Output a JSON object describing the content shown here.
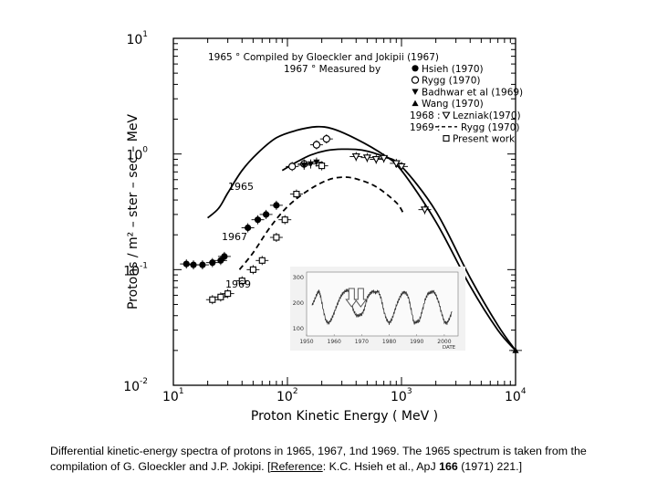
{
  "chart_data": {
    "type": "scatter",
    "xlabel": "Proton   Kinetic   Energy    ( MeV )",
    "ylabel": "Protons / m² – ster – sec – MeV",
    "xscale": "log",
    "yscale": "log",
    "xlim": [
      10,
      10000
    ],
    "ylim": [
      0.01,
      10
    ],
    "x_ticks": [
      {
        "base": "10",
        "exp": "1"
      },
      {
        "base": "10",
        "exp": "2"
      },
      {
        "base": "10",
        "exp": "3"
      },
      {
        "base": "10",
        "exp": "4"
      }
    ],
    "y_ticks": [
      {
        "base": "10",
        "exp": "-2"
      },
      {
        "base": "10",
        "exp": "-1"
      },
      {
        "base": "10",
        "exp": "0"
      },
      {
        "base": "10",
        "exp": "1"
      }
    ],
    "curve_labels": [
      "1965",
      "1967",
      "1969"
    ],
    "legend": {
      "position": "top-right",
      "entries": [
        {
          "prefix": "1965 ° Compiled  by  Gloeckler  and  Jokipii (1967)"
        },
        {
          "prefix": "1967 ° Measured  by",
          "marker": "filled-circle",
          "label": "Hsieh  (1970)"
        },
        {
          "marker": "open-circle",
          "label": "Rygg  (1970)"
        },
        {
          "marker": "filled-triangle-down",
          "label": "Badhwar et al (1969)"
        },
        {
          "marker": "filled-triangle-up",
          "label": "Wang  (1970)"
        },
        {
          "prefix": "1968 :",
          "marker": "open-triangle-down",
          "label": "Lezniak(1970)"
        },
        {
          "prefix": "1969 :",
          "marker": "dashed-line",
          "label": "Rygg  (1970)"
        },
        {
          "marker": "open-square",
          "label": "Present  work"
        }
      ]
    },
    "series": [
      {
        "name": "1965 spectrum",
        "style": "solid",
        "points": [
          [
            20,
            0.28
          ],
          [
            25,
            0.34
          ],
          [
            30,
            0.46
          ],
          [
            40,
            0.72
          ],
          [
            55,
            1.02
          ],
          [
            80,
            1.38
          ],
          [
            120,
            1.6
          ],
          [
            180,
            1.72
          ],
          [
            250,
            1.65
          ],
          [
            400,
            1.35
          ],
          [
            700,
            0.98
          ],
          [
            1000,
            0.72
          ],
          [
            2000,
            0.26
          ],
          [
            4000,
            0.072
          ],
          [
            7000,
            0.03
          ],
          [
            10000,
            0.02
          ]
        ]
      },
      {
        "name": "1967 spectrum",
        "style": "solid",
        "points": [
          [
            90,
            0.72
          ],
          [
            120,
            0.85
          ],
          [
            160,
            0.98
          ],
          [
            220,
            1.07
          ],
          [
            300,
            1.1
          ],
          [
            450,
            1.08
          ],
          [
            700,
            0.95
          ],
          [
            1000,
            0.78
          ],
          [
            2000,
            0.32
          ],
          [
            4000,
            0.085
          ],
          [
            7000,
            0.033
          ],
          [
            10000,
            0.02
          ]
        ]
      },
      {
        "name": "1969 spectrum",
        "style": "dashed",
        "points": [
          [
            38,
            0.1
          ],
          [
            50,
            0.14
          ],
          [
            70,
            0.23
          ],
          [
            100,
            0.35
          ],
          [
            150,
            0.48
          ],
          [
            220,
            0.59
          ],
          [
            300,
            0.63
          ],
          [
            400,
            0.61
          ],
          [
            600,
            0.52
          ],
          [
            900,
            0.38
          ],
          [
            1050,
            0.3
          ]
        ]
      },
      {
        "name": "Hsieh (1970)",
        "marker": "filled-circle",
        "points": [
          [
            13,
            0.112
          ],
          [
            15,
            0.11
          ],
          [
            18,
            0.11
          ],
          [
            22,
            0.115
          ],
          [
            26,
            0.12
          ],
          [
            28,
            0.13
          ],
          [
            45,
            0.23
          ],
          [
            55,
            0.27
          ],
          [
            65,
            0.3
          ],
          [
            80,
            0.36
          ]
        ]
      },
      {
        "name": "Rygg (1970)",
        "marker": "open-circle",
        "points": [
          [
            110,
            0.78
          ],
          [
            140,
            0.82
          ],
          [
            180,
            1.2
          ],
          [
            220,
            1.35
          ]
        ]
      },
      {
        "name": "Badhwar et al (1969)",
        "marker": "filled-triangle-down",
        "points": [
          [
            140,
            0.8
          ],
          [
            160,
            0.82
          ],
          [
            180,
            0.85
          ]
        ]
      },
      {
        "name": "Lezniak (1970)",
        "marker": "open-triangle-down",
        "points": [
          [
            400,
            0.95
          ],
          [
            500,
            0.93
          ],
          [
            600,
            0.9
          ],
          [
            700,
            0.92
          ],
          [
            900,
            0.83
          ],
          [
            1000,
            0.78
          ],
          [
            1600,
            0.33
          ]
        ]
      },
      {
        "name": "Present work",
        "marker": "open-square",
        "points": [
          [
            22,
            0.055
          ],
          [
            26,
            0.058
          ],
          [
            30,
            0.062
          ],
          [
            40,
            0.08
          ],
          [
            50,
            0.1
          ],
          [
            60,
            0.12
          ],
          [
            80,
            0.19
          ],
          [
            95,
            0.27
          ],
          [
            120,
            0.45
          ],
          [
            200,
            0.79
          ]
        ]
      },
      {
        "name": "Wang (1970)",
        "marker": "filled-triangle-up",
        "points": [
          [
            10000,
            0.02
          ]
        ]
      }
    ],
    "inset": {
      "type": "line",
      "x_ticks": [
        "1950",
        "1960",
        "1970",
        "1980",
        "1990",
        "2000"
      ],
      "y_ticks": [
        "100",
        "200",
        "300"
      ],
      "xlabel": "DATE",
      "xlim": [
        1950,
        2005
      ],
      "ylim": [
        70,
        320
      ],
      "arrows_at": [
        1967,
        1969
      ],
      "series": {
        "x": [
          1952,
          1953,
          1954,
          1954.5,
          1955,
          1956,
          1957,
          1958,
          1959,
          1960,
          1961,
          1962,
          1963,
          1964,
          1965,
          1966,
          1967,
          1968,
          1969,
          1970,
          1971,
          1972,
          1973,
          1974,
          1975,
          1976,
          1977,
          1978,
          1979,
          1980,
          1981,
          1982,
          1983,
          1984,
          1985,
          1986,
          1987,
          1988,
          1989,
          1990,
          1991,
          1992,
          1993,
          1994,
          1995,
          1996,
          1997,
          1998,
          1999,
          2000,
          2001,
          2002,
          2003
        ],
        "y": [
          190,
          215,
          240,
          245,
          230,
          175,
          130,
          120,
          135,
          160,
          190,
          215,
          235,
          245,
          250,
          220,
          170,
          150,
          150,
          155,
          175,
          220,
          235,
          245,
          240,
          245,
          220,
          170,
          135,
          120,
          135,
          170,
          200,
          225,
          240,
          240,
          220,
          170,
          120,
          125,
          130,
          170,
          210,
          235,
          240,
          245,
          230,
          200,
          160,
          125,
          120,
          140,
          175
        ]
      }
    }
  },
  "caption": {
    "text": "Differential kinetic-energy spectra of protons in 1965, 1967, 1nd 1969. The 1965 spectrum is taken from the  compilation of G. Gloeckler and J.P. Jokipi. [",
    "ref_label": "Reference",
    "ref_text": ": K.C. Hsieh et al., ApJ ",
    "ref_volume": "166",
    "ref_end": " (1971) 221.]"
  }
}
